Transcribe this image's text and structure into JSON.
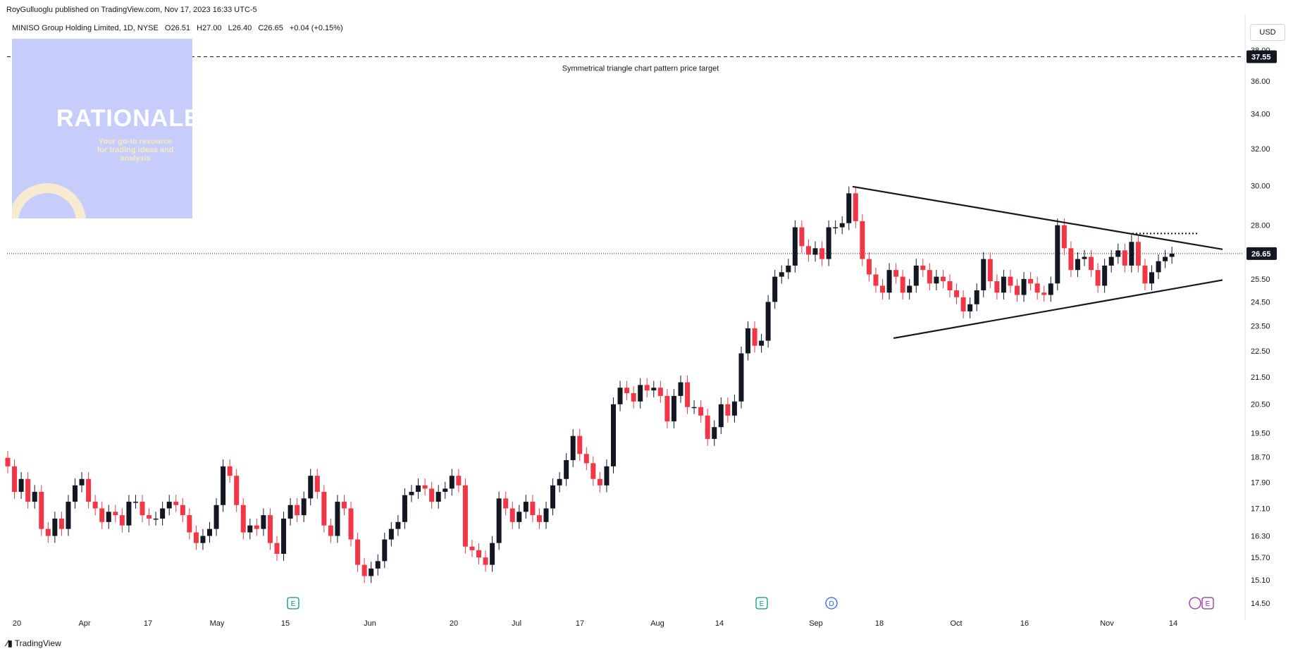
{
  "header": {
    "published": "RoyGulluoglu published on TradingView.com, Nov 17, 2023 16:33 UTC-5",
    "symbol": "MINISO Group Holding Limited, 1D, NYSE",
    "open": "O26.51",
    "high": "H27.00",
    "low": "L26.40",
    "close": "C26.65",
    "change": "+0.04 (+0.15%)",
    "currency": "USD"
  },
  "logo": {
    "title": "RATIONALE",
    "tagline": "Your go-to resource for trading ideas and analysis"
  },
  "footer": {
    "brand": "TradingView"
  },
  "colors": {
    "up": "#131722",
    "down": "#f23645",
    "background": "#ffffff",
    "grid": "#ffffff"
  },
  "events": [
    {
      "label": "E",
      "x_label": "May 15",
      "color": "#089981"
    },
    {
      "label": "E",
      "x_label": "Aug 22",
      "color": "#089981"
    },
    {
      "label": "D",
      "x_label": "Sep 1",
      "color": "#2962ff"
    },
    {
      "label": "E",
      "x_label": "Nov 20",
      "color": "#9c27b0"
    }
  ],
  "chart_data": {
    "type": "candlestick",
    "title": "",
    "y_scale": "log",
    "ylim": [
      14.2,
      38.6
    ],
    "y_ticks": [
      "38.00",
      "36.00",
      "34.00",
      "32.00",
      "30.00",
      "28.00",
      "26.65",
      "25.50",
      "24.50",
      "23.50",
      "22.50",
      "21.50",
      "20.50",
      "19.50",
      "18.70",
      "17.90",
      "17.10",
      "16.30",
      "15.70",
      "15.10",
      "14.50"
    ],
    "x_ticks": [
      "20",
      "Apr",
      "17",
      "May",
      "15",
      "Jun",
      "20",
      "Jul",
      "17",
      "Aug",
      "14",
      "Sep",
      "18",
      "Oct",
      "16",
      "Nov",
      "14"
    ],
    "last_price": 26.65,
    "target_price": 37.55,
    "annotation": "Symmetrical triangle chart pattern price target",
    "closes": [
      18.4,
      17.6,
      18.0,
      17.3,
      17.6,
      16.5,
      16.3,
      16.8,
      16.5,
      17.3,
      17.8,
      18.0,
      17.3,
      17.1,
      16.7,
      17.0,
      16.9,
      16.6,
      17.3,
      17.3,
      16.9,
      16.8,
      16.8,
      17.1,
      17.3,
      17.2,
      16.9,
      16.4,
      16.1,
      16.3,
      16.5,
      17.2,
      18.4,
      18.1,
      17.2,
      16.4,
      16.6,
      16.5,
      16.9,
      16.1,
      15.8,
      16.8,
      17.2,
      16.9,
      17.4,
      18.1,
      17.6,
      16.6,
      16.3,
      17.3,
      17.1,
      16.2,
      15.5,
      15.2,
      15.4,
      15.6,
      16.2,
      16.5,
      16.7,
      17.5,
      17.6,
      17.8,
      17.7,
      17.3,
      17.6,
      17.7,
      18.1,
      17.8,
      16.0,
      15.9,
      15.7,
      15.5,
      16.1,
      17.4,
      17.1,
      16.7,
      17.0,
      17.3,
      16.9,
      16.7,
      17.1,
      17.8,
      18.0,
      18.6,
      19.4,
      18.8,
      18.5,
      18.0,
      17.8,
      18.4,
      20.5,
      21.1,
      20.9,
      20.6,
      21.2,
      21.0,
      21.1,
      20.8,
      19.9,
      20.8,
      21.3,
      20.4,
      20.4,
      20.1,
      19.3,
      19.7,
      20.5,
      20.1,
      20.6,
      22.4,
      23.4,
      22.7,
      22.9,
      24.5,
      25.6,
      25.8,
      26.1,
      27.9,
      27.0,
      26.6,
      26.9,
      26.4,
      27.9,
      27.9,
      28.1,
      29.6,
      28.2,
      26.4,
      25.7,
      25.2,
      24.9,
      25.9,
      25.6,
      24.9,
      25.2,
      26.1,
      25.9,
      25.3,
      25.6,
      25.4,
      25.0,
      24.7,
      24.1,
      24.4,
      25.0,
      26.4,
      25.4,
      24.9,
      25.6,
      25.2,
      24.8,
      25.5,
      25.3,
      24.9,
      24.8,
      25.3,
      28.0,
      26.9,
      25.9,
      26.4,
      26.5,
      25.9,
      25.2,
      26.1,
      26.5,
      26.8,
      26.1,
      27.2,
      26.1,
      25.3,
      25.8,
      26.3,
      26.5,
      26.65
    ],
    "trendlines": [
      {
        "name": "triangle upper",
        "from": [
          "Sep 8",
          29.95
        ],
        "to": [
          "Nov 24",
          26.85
        ]
      },
      {
        "name": "triangle lower",
        "from": [
          "Sep 19",
          23.0
        ],
        "to": [
          "Nov 24",
          25.45
        ]
      },
      {
        "name": "breakout level",
        "from": [
          "Nov 6",
          27.6
        ],
        "to": [
          "Nov 20",
          27.6
        ]
      }
    ]
  }
}
